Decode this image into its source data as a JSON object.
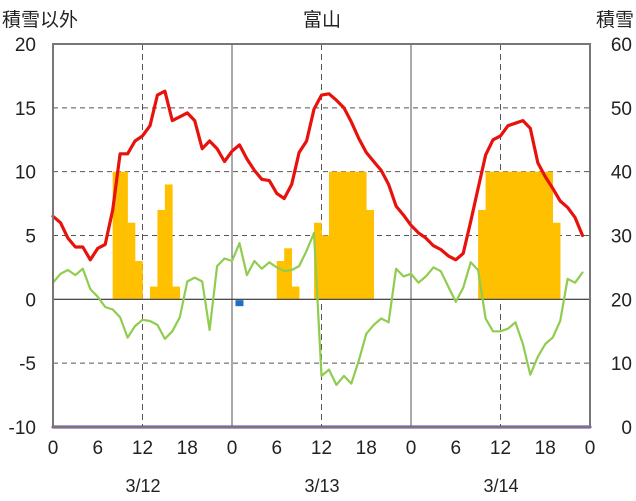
{
  "chart_data": {
    "type": "bar+line",
    "title": "富山",
    "left_axis_title": "積雪以外",
    "right_axis_title": "積雪",
    "left_axis": {
      "min": -10,
      "max": 20,
      "ticks": [
        -10,
        -5,
        0,
        5,
        10,
        15,
        20
      ]
    },
    "right_axis": {
      "min": 0,
      "max": 60,
      "ticks": [
        0,
        10,
        20,
        30,
        40,
        50,
        60
      ]
    },
    "x_hour_ticks": [
      "0",
      "6",
      "12",
      "18",
      "0",
      "6",
      "12",
      "18",
      "0",
      "6",
      "12",
      "18",
      "0"
    ],
    "date_labels": [
      "3/12",
      "3/13",
      "3/14"
    ],
    "colors": {
      "temperature": "#e8120c",
      "dew_point": "#8fcc4f",
      "precip": "#ffc000",
      "marker": "#1f6fbf",
      "snow_depth": "#7030a0",
      "grid": "#555555"
    },
    "series": [
      {
        "key": "temperature",
        "axis": "left",
        "values": [
          6.5,
          6.0,
          4.8,
          4.1,
          4.1,
          3.1,
          4.0,
          4.3,
          7.0,
          11.4,
          11.4,
          12.4,
          12.8,
          13.6,
          16.0,
          16.3,
          14.0,
          14.3,
          14.6,
          14.0,
          11.8,
          12.4,
          11.8,
          10.8,
          11.6,
          12.1,
          11.0,
          10.1,
          9.4,
          9.3,
          8.3,
          7.9,
          9.0,
          11.5,
          12.4,
          14.9,
          16.0,
          16.1,
          15.6,
          15.0,
          13.9,
          12.6,
          11.5,
          10.8,
          10.1,
          9.0,
          7.3,
          6.6,
          5.8,
          5.2,
          4.8,
          4.2,
          3.9,
          3.4,
          3.1,
          3.6,
          6.1,
          8.7,
          11.3,
          12.5,
          12.8,
          13.6,
          13.8,
          14.0,
          13.4,
          10.7,
          9.6,
          8.7,
          7.7,
          7.2,
          6.4,
          5.0
        ]
      },
      {
        "key": "dew_point",
        "axis": "left",
        "values": [
          1.3,
          2.0,
          2.3,
          1.9,
          2.4,
          0.8,
          0.2,
          -0.6,
          -0.8,
          -1.4,
          -3.0,
          -2.1,
          -1.6,
          -1.7,
          -2.0,
          -3.1,
          -2.5,
          -1.4,
          1.4,
          1.7,
          1.4,
          -2.4,
          2.6,
          3.2,
          3.0,
          4.4,
          1.9,
          3.0,
          2.4,
          2.9,
          2.5,
          2.2,
          2.3,
          2.6,
          3.8,
          5.2,
          -6.0,
          -5.5,
          -6.7,
          -6.0,
          -6.6,
          -4.8,
          -2.7,
          -2.0,
          -1.5,
          -1.8,
          2.4,
          1.8,
          2.0,
          1.3,
          1.8,
          2.5,
          2.2,
          1.0,
          -0.2,
          0.9,
          2.9,
          2.3,
          -1.5,
          -2.5,
          -2.5,
          -2.3,
          -1.8,
          -3.5,
          -5.9,
          -4.5,
          -3.5,
          -3.0,
          -1.7,
          1.6,
          1.3,
          2.1
        ]
      },
      {
        "key": "precip",
        "axis": "left",
        "values": [
          0,
          0,
          0,
          0,
          0,
          0,
          0,
          0,
          10,
          10,
          6,
          3,
          0,
          1,
          7,
          9,
          1,
          0,
          0,
          0,
          0,
          0,
          0,
          0,
          0,
          0,
          0,
          0,
          0,
          0,
          3,
          4,
          1,
          0,
          0,
          6,
          5,
          10,
          10,
          10,
          10,
          10,
          7,
          0,
          0,
          0,
          0,
          0,
          0,
          0,
          0,
          0,
          0,
          0,
          0,
          0,
          0,
          7,
          10,
          10,
          10,
          10,
          10,
          10,
          10,
          10,
          10,
          6,
          0,
          0,
          0,
          0
        ]
      },
      {
        "key": "snow_depth",
        "axis": "right",
        "values": [
          0,
          0,
          0,
          0,
          0,
          0,
          0,
          0,
          0,
          0,
          0,
          0,
          0,
          0,
          0,
          0,
          0,
          0,
          0,
          0,
          0,
          0,
          0,
          0,
          0,
          0,
          0,
          0,
          0,
          0,
          0,
          0,
          0,
          0,
          0,
          0,
          0,
          0,
          0,
          0,
          0,
          0,
          0,
          0,
          0,
          0,
          0,
          0,
          0,
          0,
          0,
          0,
          0,
          0,
          0,
          0,
          0,
          0,
          0,
          0,
          0,
          0,
          0,
          0,
          0,
          0,
          0,
          0,
          0,
          0,
          0,
          0,
          0
        ]
      }
    ],
    "marker_points": [
      {
        "key": "marker",
        "hour": 25,
        "value": -0.3
      }
    ]
  }
}
